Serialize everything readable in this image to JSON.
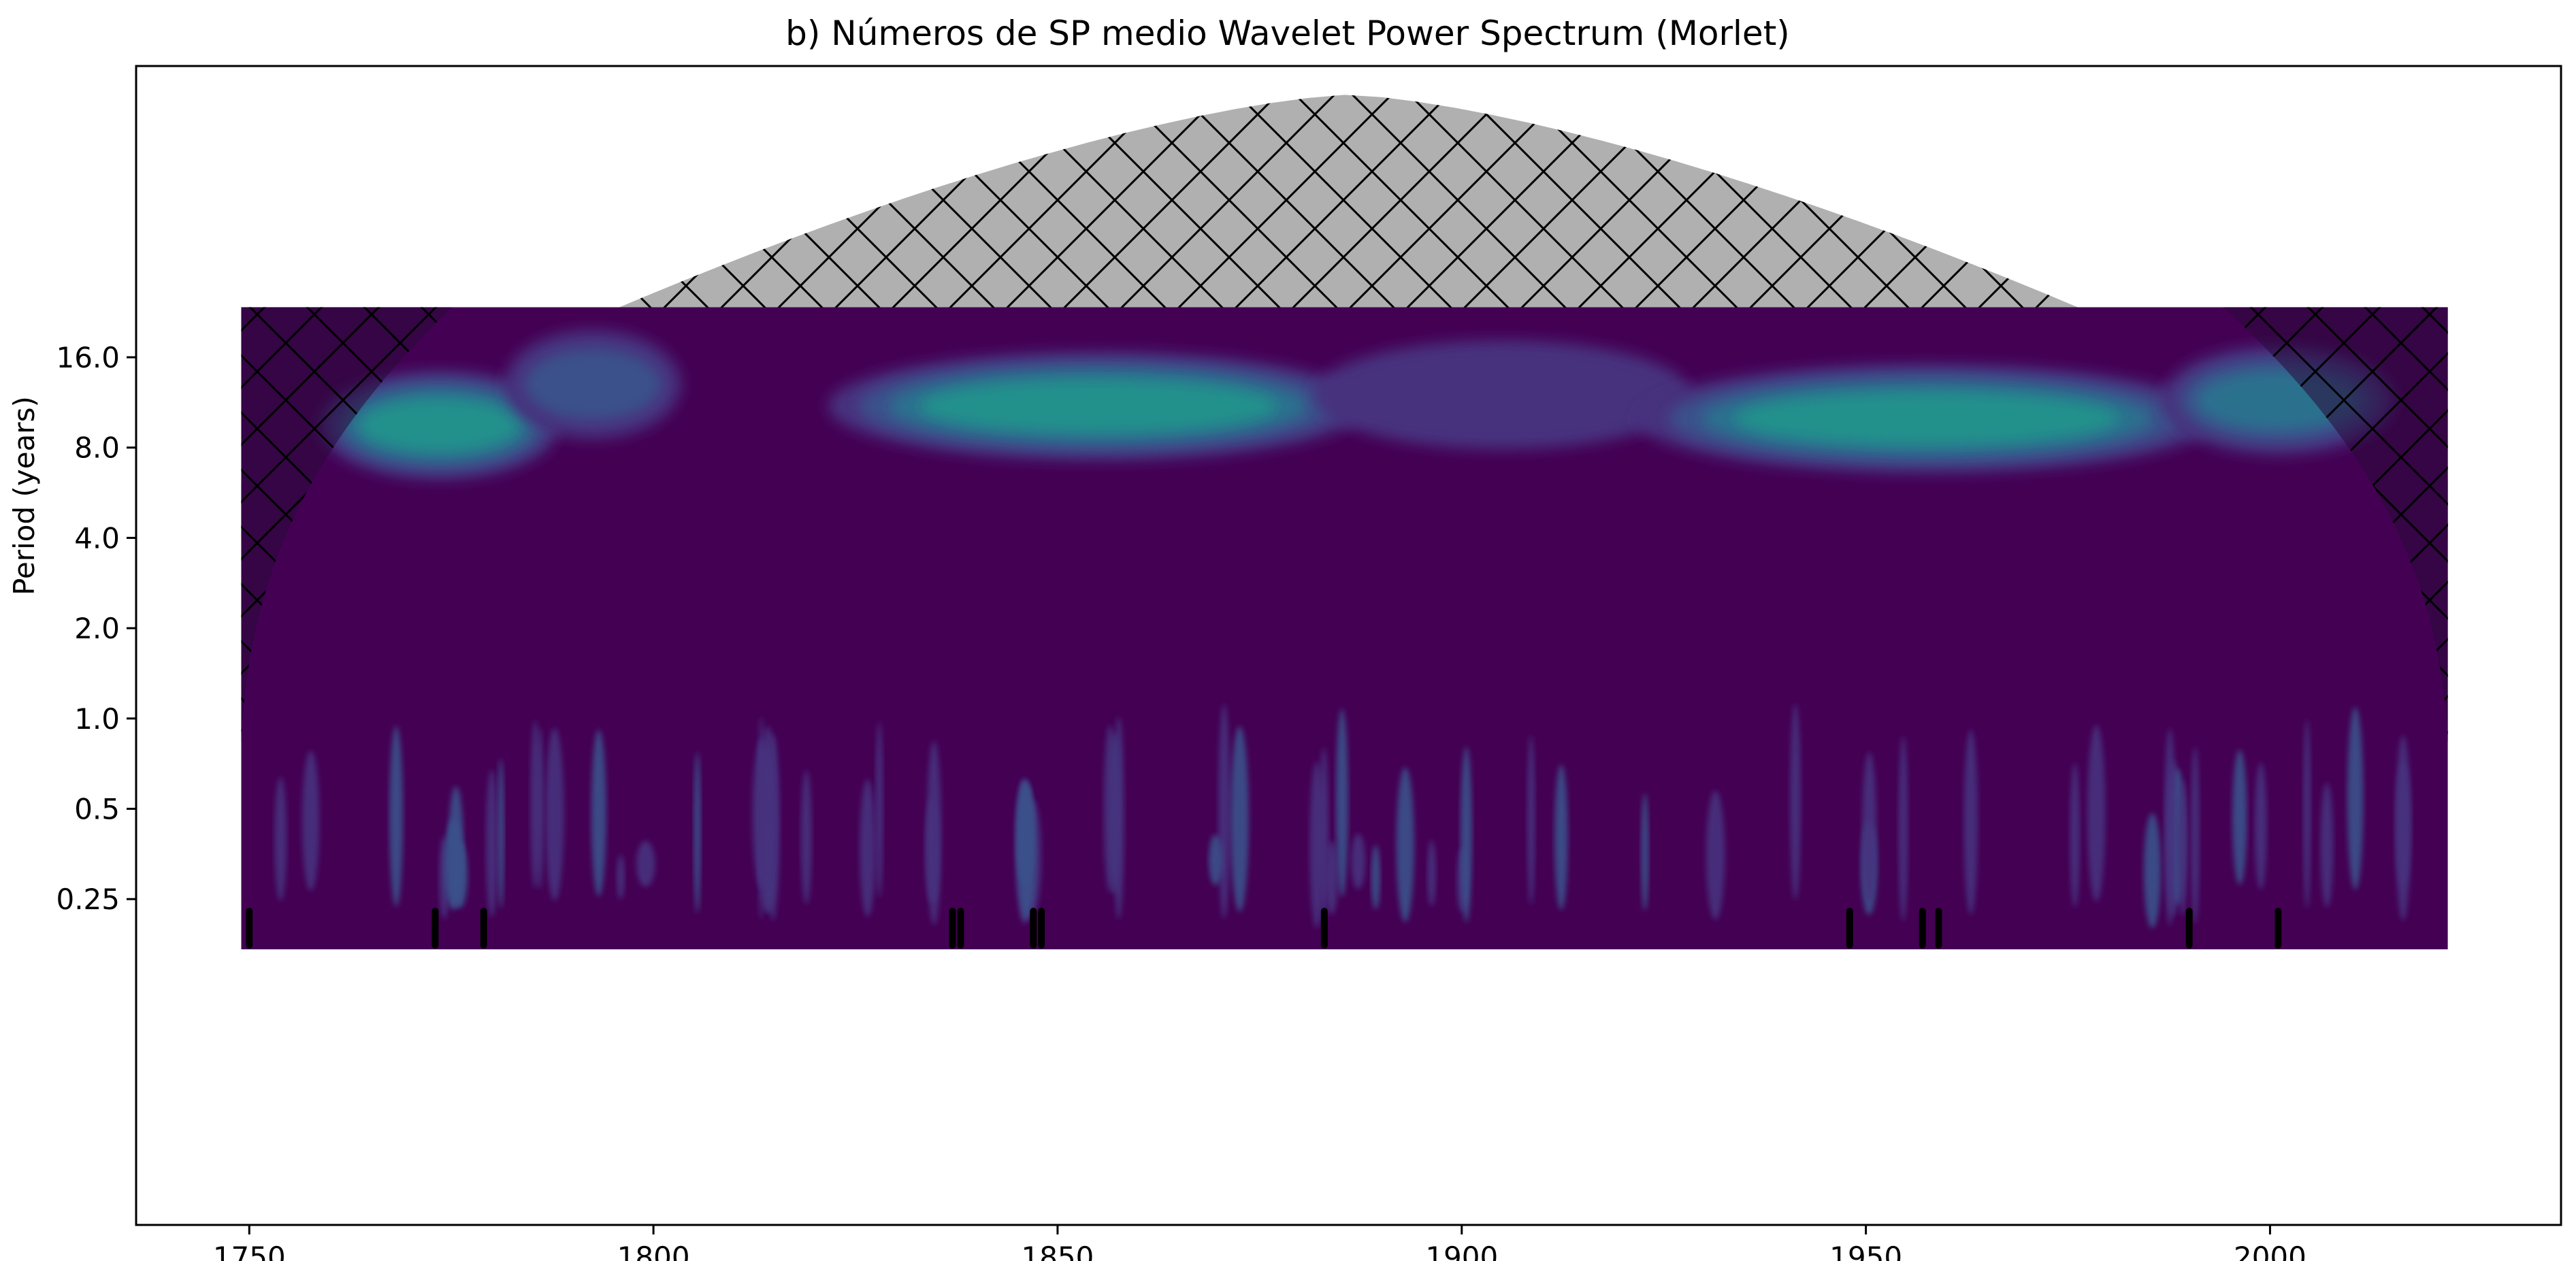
{
  "chart_data": {
    "type": "heatmap",
    "title": "b) Números de SP medio Wavelet Power Spectrum (Morlet)",
    "xlabel": "",
    "ylabel": "Period (years)",
    "xlim": [
      1736,
      2036
    ],
    "x_ticks": [
      1750,
      1800,
      1850,
      1900,
      1950,
      2000
    ],
    "y_scale": "log2",
    "y_ticks": [
      0.25,
      0.5,
      1.0,
      2.0,
      4.0,
      8.0,
      16.0
    ],
    "y_tick_labels": [
      "0.25",
      "0.5",
      "1.0",
      "2.0",
      "4.0",
      "8.0",
      "16.0"
    ],
    "time_range": [
      1749,
      2022
    ],
    "period_range": [
      0.17,
      23.5
    ],
    "colormap": "viridis",
    "levels": [
      0,
      1,
      2,
      3,
      4,
      5
    ],
    "colors": {
      "background": "#440154",
      "level1": "#46307e",
      "level2": "#3b518b",
      "level3": "#2c718e",
      "level4": "#21918c",
      "level5": "#27ad81",
      "cone_fill": "#b0b0b0",
      "cone_hatch": "#000000",
      "significance": "#000000"
    },
    "power_band": {
      "description": "dominant band near 10-11 year period",
      "segments": [
        {
          "start": 1762,
          "end": 1785,
          "period": 9.5,
          "strength": 3.6
        },
        {
          "start": 1785,
          "end": 1800,
          "period": 13.0,
          "strength": 2.4
        },
        {
          "start": 1825,
          "end": 1885,
          "period": 11.0,
          "strength": 3.8
        },
        {
          "start": 1885,
          "end": 1925,
          "period": 12.0,
          "strength": 1.4
        },
        {
          "start": 1925,
          "end": 1990,
          "period": 10.0,
          "strength": 3.9
        },
        {
          "start": 1990,
          "end": 2012,
          "period": 11.5,
          "strength": 3.2
        }
      ]
    },
    "cone_of_influence": {
      "max_period_center": 40,
      "peak_year": 1886
    },
    "significance_marks": [
      1750,
      1773,
      1779,
      1837,
      1838,
      1847,
      1848,
      1883,
      1948,
      1957,
      1959,
      1990,
      2001
    ]
  }
}
